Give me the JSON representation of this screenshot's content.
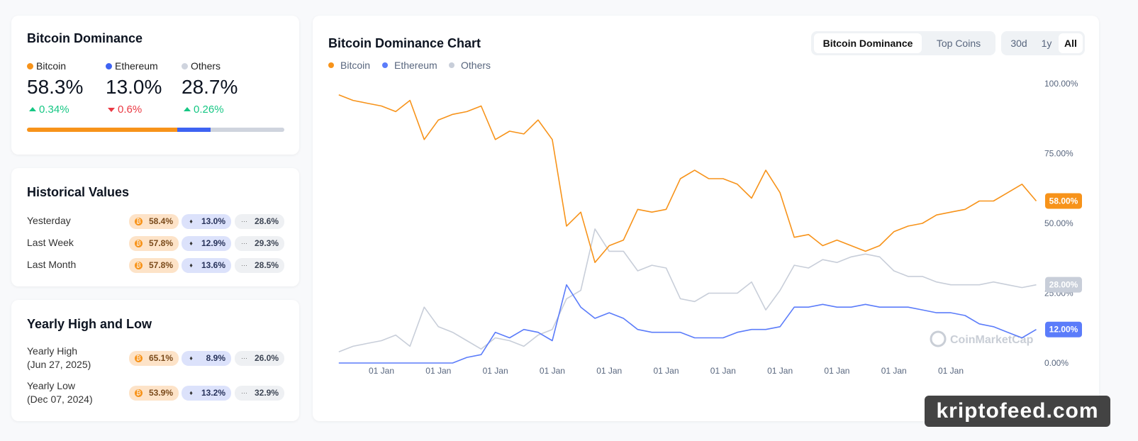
{
  "dominance_card": {
    "title": "Bitcoin Dominance",
    "items": [
      {
        "name": "Bitcoin",
        "color": "#f7931a",
        "value": 58.3,
        "label": "58.3%",
        "change": 0.34,
        "change_label": "0.34%"
      },
      {
        "name": "Ethereum",
        "color": "#3e63f2",
        "value": 13.0,
        "label": "13.0%",
        "change": -0.6,
        "change_label": "0.6%"
      },
      {
        "name": "Others",
        "color": "#cfd4de",
        "value": 28.7,
        "label": "28.7%",
        "change": 0.26,
        "change_label": "0.26%"
      }
    ]
  },
  "historical": {
    "title": "Historical Values",
    "rows": [
      {
        "label": "Yesterday",
        "values": [
          "58.4%",
          "13.0%",
          "28.6%"
        ]
      },
      {
        "label": "Last Week",
        "values": [
          "57.8%",
          "12.9%",
          "29.3%"
        ]
      },
      {
        "label": "Last Month",
        "values": [
          "57.8%",
          "13.6%",
          "28.5%"
        ]
      }
    ]
  },
  "yearly": {
    "title": "Yearly High and Low",
    "rows": [
      {
        "label": "Yearly High",
        "date": "(Jun 27, 2025)",
        "values": [
          "65.1%",
          "8.9%",
          "26.0%"
        ]
      },
      {
        "label": "Yearly Low",
        "date": "(Dec 07, 2024)",
        "values": [
          "53.9%",
          "13.2%",
          "32.9%"
        ]
      }
    ]
  },
  "tabs": [
    "Bitcoin Dominance",
    "Top Coins"
  ],
  "active_tab": 0,
  "ranges": [
    "30d",
    "1y",
    "All"
  ],
  "active_range": 2,
  "watermark": "CoinMarketCap",
  "overlay": "kriptofeed.com",
  "chart_data": {
    "type": "line",
    "title": "Bitcoin Dominance Chart",
    "categories": [
      null,
      null,
      null,
      "01 Jan",
      null,
      null,
      null,
      "01 Jan",
      null,
      null,
      null,
      "01 Jan",
      null,
      null,
      null,
      "01 Jan",
      null,
      null,
      null,
      "01 Jan",
      null,
      null,
      null,
      "01 Jan",
      null,
      null,
      null,
      "01 Jan",
      null,
      null,
      null,
      "01 Jan",
      null,
      null,
      null,
      "01 Jan",
      null,
      null,
      null,
      "01 Jan",
      null,
      null,
      null,
      "01 Jan",
      null,
      null,
      null,
      null,
      null,
      null
    ],
    "series": [
      {
        "name": "Bitcoin",
        "color": "#f7931a",
        "last_label": "58.00%",
        "values": [
          96,
          94,
          93,
          92,
          90,
          94,
          80,
          87,
          89,
          90,
          92,
          80,
          83,
          82,
          87,
          80,
          49,
          54,
          36,
          42,
          44,
          55,
          54,
          55,
          66,
          69,
          66,
          66,
          64,
          59,
          69,
          61,
          45,
          46,
          42,
          44,
          42,
          40,
          42,
          47,
          49,
          50,
          53,
          54,
          55,
          58,
          58,
          61,
          64,
          58
        ]
      },
      {
        "name": "Ethereum",
        "color": "#5b7cfa",
        "last_label": "12.00%",
        "values": [
          0,
          0,
          0,
          0,
          0,
          0,
          0,
          0,
          0,
          2,
          3,
          11,
          9,
          12,
          11,
          8,
          28,
          20,
          16,
          18,
          16,
          12,
          11,
          11,
          11,
          9,
          9,
          9,
          11,
          12,
          12,
          13,
          20,
          20,
          21,
          20,
          20,
          21,
          20,
          20,
          20,
          19,
          18,
          18,
          17,
          14,
          13,
          11,
          9,
          12
        ]
      },
      {
        "name": "Others",
        "color": "#c8ced9",
        "last_label": "28.00%",
        "values": [
          4,
          6,
          7,
          8,
          10,
          6,
          20,
          13,
          11,
          8,
          5,
          9,
          8,
          6,
          10,
          12,
          23,
          26,
          48,
          40,
          40,
          33,
          35,
          34,
          23,
          22,
          25,
          25,
          25,
          29,
          19,
          26,
          35,
          34,
          37,
          36,
          38,
          39,
          38,
          33,
          31,
          31,
          29,
          28,
          28,
          28,
          29,
          28,
          27,
          28
        ]
      }
    ],
    "ylim": [
      0,
      100
    ],
    "yticks": [
      {
        "value": 0,
        "label": "0.00%"
      },
      {
        "value": 25,
        "label": "25.00%"
      },
      {
        "value": 50,
        "label": "50.00%"
      },
      {
        "value": 75,
        "label": "75.00%"
      },
      {
        "value": 100,
        "label": "100.00%"
      }
    ],
    "grid": false
  }
}
